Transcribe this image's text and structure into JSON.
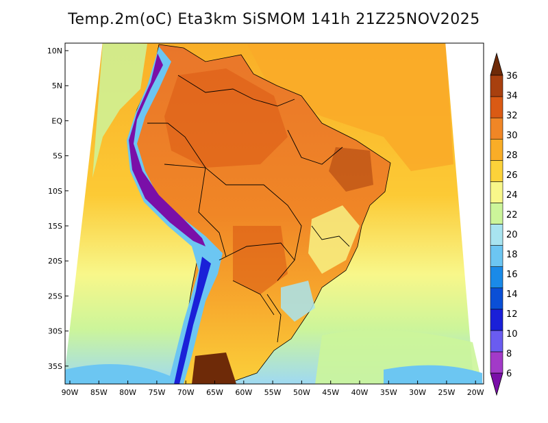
{
  "title": "Temp.2m(oC) Eta3km SiSMOM 141h 21Z25NOV2025",
  "lat_labels": [
    "10N",
    "5N",
    "EQ",
    "5S",
    "10S",
    "15S",
    "20S",
    "25S",
    "30S",
    "35S"
  ],
  "lon_labels": [
    "90W",
    "85W",
    "80W",
    "75W",
    "70W",
    "65W",
    "60W",
    "55W",
    "50W",
    "45W",
    "40W",
    "35W",
    "30W",
    "25W",
    "20W"
  ],
  "colorbar": {
    "levels": [
      6,
      8,
      10,
      12,
      14,
      16,
      18,
      20,
      22,
      24,
      26,
      28,
      30,
      32,
      34,
      36
    ],
    "labels": [
      "6",
      "8",
      "10",
      "12",
      "14",
      "16",
      "18",
      "20",
      "22",
      "24",
      "26",
      "28",
      "30",
      "32",
      "34",
      "36"
    ],
    "colors": [
      "#7a0fa8",
      "#a23ac8",
      "#6a5cf0",
      "#1a20d8",
      "#0a4fd6",
      "#1a8ae8",
      "#6cc6f2",
      "#a8e4f0",
      "#ccf59a",
      "#f8f78a",
      "#fcd23a",
      "#f9ad27",
      "#f08626",
      "#da5a14",
      "#a8400f",
      "#6e2a08"
    ]
  },
  "colors": {
    "ocean_north": "#f9ae27",
    "ocean_mid": "#fcd23a",
    "ocean_south": "#f8f78a",
    "land_hot": "#ef8a2b",
    "land_very_hot": "#da5a14",
    "andes_cold": "#7a0fa8",
    "cool": "#6cc6f2"
  }
}
